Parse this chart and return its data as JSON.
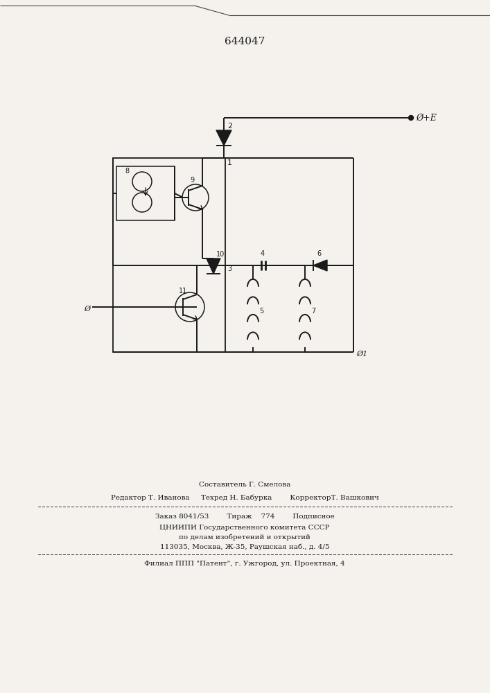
{
  "title": "644047",
  "bg_color": "#f5f2ee",
  "line_color": "#1a1a1a",
  "text_color": "#1a1a1a",
  "label_plus_e": "Ø+E",
  "label_0": "Ø",
  "label_01": "Ø1",
  "footer_line1": "Составитель Г. Смелова",
  "footer_line2": "Редактор Т. Иванова     Техред Н. Бабурка        КорректорТ. Вашкович",
  "footer_line3": "Заказ 8041/53        Тираж    774        Подписное",
  "footer_line4": "ЦНИИПИ Государственного комитета СССР",
  "footer_line5": "по делам изобретений и открытий",
  "footer_line6": "113035, Москва, Ж-35, Раушская наб., д. 4/5",
  "footer_line7": "Филиал ППП \"Патент\", г. Ужгород, ул. Проектная, 4"
}
